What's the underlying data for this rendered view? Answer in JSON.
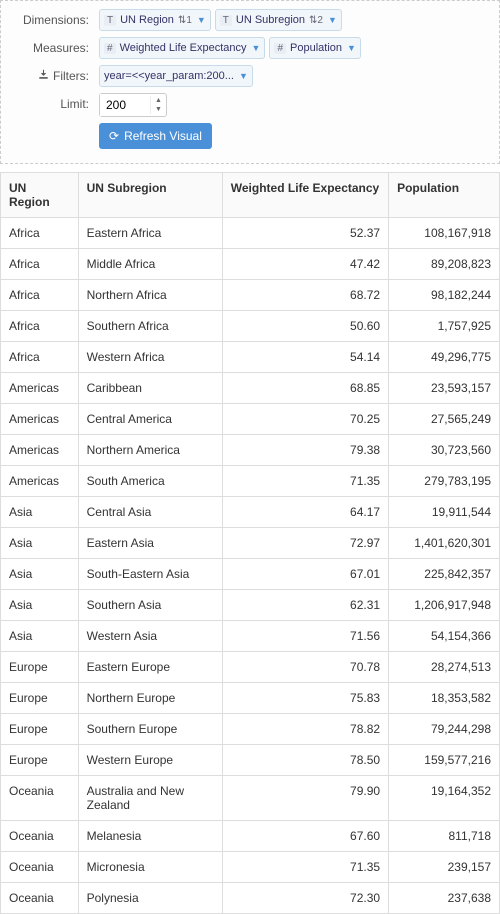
{
  "controls": {
    "dimensions": {
      "label": "Dimensions:",
      "pills": [
        {
          "type": "T",
          "label": "UN Region",
          "sort": "1"
        },
        {
          "type": "T",
          "label": "UN Subregion",
          "sort": "2"
        }
      ]
    },
    "measures": {
      "label": "Measures:",
      "pills": [
        {
          "type": "#",
          "label": "Weighted Life Expectancy"
        },
        {
          "type": "#",
          "label": "Population"
        }
      ]
    },
    "filters": {
      "label": "Filters:",
      "pills": [
        {
          "label": "year=<<year_param:200..."
        }
      ]
    },
    "limit": {
      "label": "Limit:",
      "value": "200"
    },
    "refresh": {
      "label": "Refresh Visual"
    }
  },
  "table": {
    "columns": [
      "UN Region",
      "UN Subregion",
      "Weighted Life Expectancy",
      "Population"
    ],
    "rows": [
      [
        "Africa",
        "Eastern Africa",
        "52.37",
        "108,167,918"
      ],
      [
        "Africa",
        "Middle Africa",
        "47.42",
        "89,208,823"
      ],
      [
        "Africa",
        "Northern Africa",
        "68.72",
        "98,182,244"
      ],
      [
        "Africa",
        "Southern Africa",
        "50.60",
        "1,757,925"
      ],
      [
        "Africa",
        "Western Africa",
        "54.14",
        "49,296,775"
      ],
      [
        "Americas",
        "Caribbean",
        "68.85",
        "23,593,157"
      ],
      [
        "Americas",
        "Central America",
        "70.25",
        "27,565,249"
      ],
      [
        "Americas",
        "Northern America",
        "79.38",
        "30,723,560"
      ],
      [
        "Americas",
        "South America",
        "71.35",
        "279,783,195"
      ],
      [
        "Asia",
        "Central Asia",
        "64.17",
        "19,911,544"
      ],
      [
        "Asia",
        "Eastern Asia",
        "72.97",
        "1,401,620,301"
      ],
      [
        "Asia",
        "South-Eastern Asia",
        "67.01",
        "225,842,357"
      ],
      [
        "Asia",
        "Southern Asia",
        "62.31",
        "1,206,917,948"
      ],
      [
        "Asia",
        "Western Asia",
        "71.56",
        "54,154,366"
      ],
      [
        "Europe",
        "Eastern Europe",
        "70.78",
        "28,274,513"
      ],
      [
        "Europe",
        "Northern Europe",
        "75.83",
        "18,353,582"
      ],
      [
        "Europe",
        "Southern Europe",
        "78.82",
        "79,244,298"
      ],
      [
        "Europe",
        "Western Europe",
        "78.50",
        "159,577,216"
      ],
      [
        "Oceania",
        "Australia and New Zealand",
        "79.90",
        "19,164,352"
      ],
      [
        "Oceania",
        "Melanesia",
        "67.60",
        "811,718"
      ],
      [
        "Oceania",
        "Micronesia",
        "71.35",
        "239,157"
      ],
      [
        "Oceania",
        "Polynesia",
        "72.30",
        "237,638"
      ]
    ]
  }
}
